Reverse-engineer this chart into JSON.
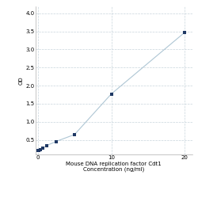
{
  "x_data": [
    0,
    0.156,
    0.312,
    0.625,
    1.25,
    2.5,
    5,
    10,
    20
  ],
  "y_data": [
    0.208,
    0.218,
    0.238,
    0.268,
    0.35,
    0.46,
    0.65,
    1.77,
    3.47
  ],
  "line_color": "#aec6d4",
  "marker_color": "#1f3864",
  "marker_size": 3.5,
  "xlabel_line1": "Mouse DNA replication factor Cdt1",
  "xlabel_line2": "Concentration (ng/ml)",
  "ylabel": "OD",
  "xlim": [
    -0.3,
    21
  ],
  "ylim": [
    0.1,
    4.2
  ],
  "xticks": [
    0,
    10,
    20
  ],
  "yticks": [
    0.5,
    1.0,
    1.5,
    2.0,
    2.5,
    3.0,
    3.5,
    4.0
  ],
  "grid_color": "#c8d4dc",
  "background_color": "#ffffff",
  "tick_label_fontsize": 5.0,
  "axis_label_fontsize": 5.0,
  "figure_width": 2.5,
  "figure_height": 2.5,
  "dpi": 100
}
